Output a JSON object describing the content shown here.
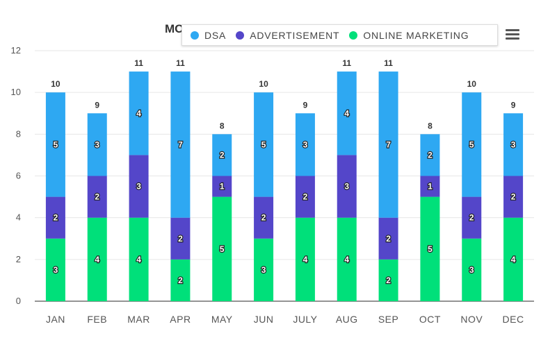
{
  "chart_data": {
    "type": "bar",
    "stacked": true,
    "title": "MO",
    "categories": [
      "JAN",
      "FEB",
      "MAR",
      "APR",
      "MAY",
      "JUN",
      "JULY",
      "AUG",
      "SEP",
      "OCT",
      "NOV",
      "DEC"
    ],
    "series": [
      {
        "name": "ONLINE MARKETING",
        "color": "#00e07a",
        "values": [
          3,
          4,
          4,
          2,
          5,
          3,
          4,
          4,
          2,
          5,
          3,
          4
        ]
      },
      {
        "name": "ADVERTISEMENT",
        "color": "#5446c9",
        "values": [
          2,
          2,
          3,
          2,
          1,
          2,
          2,
          3,
          2,
          1,
          2,
          2
        ]
      },
      {
        "name": "DSA",
        "color": "#2ea8f2",
        "values": [
          5,
          3,
          4,
          7,
          2,
          5,
          3,
          4,
          7,
          2,
          5,
          3
        ]
      }
    ],
    "totals": [
      10,
      9,
      11,
      11,
      8,
      10,
      9,
      11,
      11,
      8,
      10,
      9
    ],
    "ylim": [
      0,
      12
    ],
    "yticks": [
      0,
      2,
      4,
      6,
      8,
      10,
      12
    ],
    "xlabel": "",
    "ylabel": "",
    "grid": true,
    "legend_position": "top"
  },
  "legend": {
    "items": [
      {
        "label": "DSA",
        "color": "#2ea8f2"
      },
      {
        "label": "ADVERTISEMENT",
        "color": "#5446c9"
      },
      {
        "label": "ONLINE MARKETING",
        "color": "#00e07a"
      }
    ]
  },
  "menu": {
    "icon": "hamburger-menu-icon"
  }
}
